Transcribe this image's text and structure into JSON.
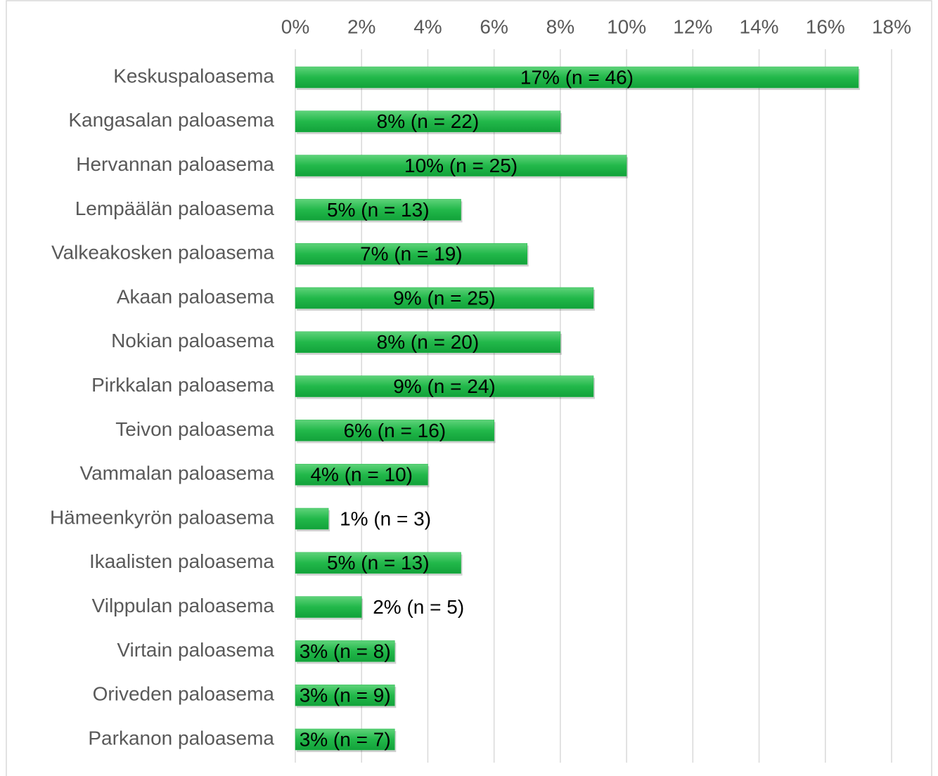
{
  "chart_data": {
    "type": "bar",
    "orientation": "horizontal",
    "categories": [
      "Keskuspaloasema",
      "Kangasalan paloasema",
      "Hervannan paloasema",
      "Lempäälän paloasema",
      "Valkeakosken paloasema",
      "Akaan paloasema",
      "Nokian paloasema",
      "Pirkkalan paloasema",
      "Teivon paloasema",
      "Vammalan paloasema",
      "Hämeenkyrön paloasema",
      "Ikaalisten paloasema",
      "Vilppulan paloasema",
      "Virtain paloasema",
      "Oriveden paloasema",
      "Parkanon paloasema"
    ],
    "values": [
      17,
      8,
      10,
      5,
      7,
      9,
      8,
      9,
      6,
      4,
      1,
      5,
      2,
      3,
      3,
      3
    ],
    "value_labels": [
      "17% (n = 46)",
      "8% (n = 22)",
      "10% (n = 25)",
      "5% (n = 13)",
      "7% (n = 19)",
      "9% (n = 25)",
      "8% (n = 20)",
      "9% (n = 24)",
      "6% (n = 16)",
      "4% (n = 10)",
      "1% (n = 3)",
      "5% (n = 13)",
      "2% (n = 5)",
      "3% (n = 8)",
      "3% (n = 9)",
      "3% (n = 7)"
    ],
    "color": "#22b84a",
    "xlim": [
      0,
      18
    ],
    "xticks": [
      {
        "value": 0,
        "label": "0%"
      },
      {
        "value": 2,
        "label": "2%"
      },
      {
        "value": 4,
        "label": "4%"
      },
      {
        "value": 6,
        "label": "6%"
      },
      {
        "value": 8,
        "label": "8%"
      },
      {
        "value": 10,
        "label": "10%"
      },
      {
        "value": 12,
        "label": "12%"
      },
      {
        "value": 14,
        "label": "14%"
      },
      {
        "value": 16,
        "label": "16%"
      },
      {
        "value": 18,
        "label": "18%"
      }
    ],
    "grid": true
  }
}
